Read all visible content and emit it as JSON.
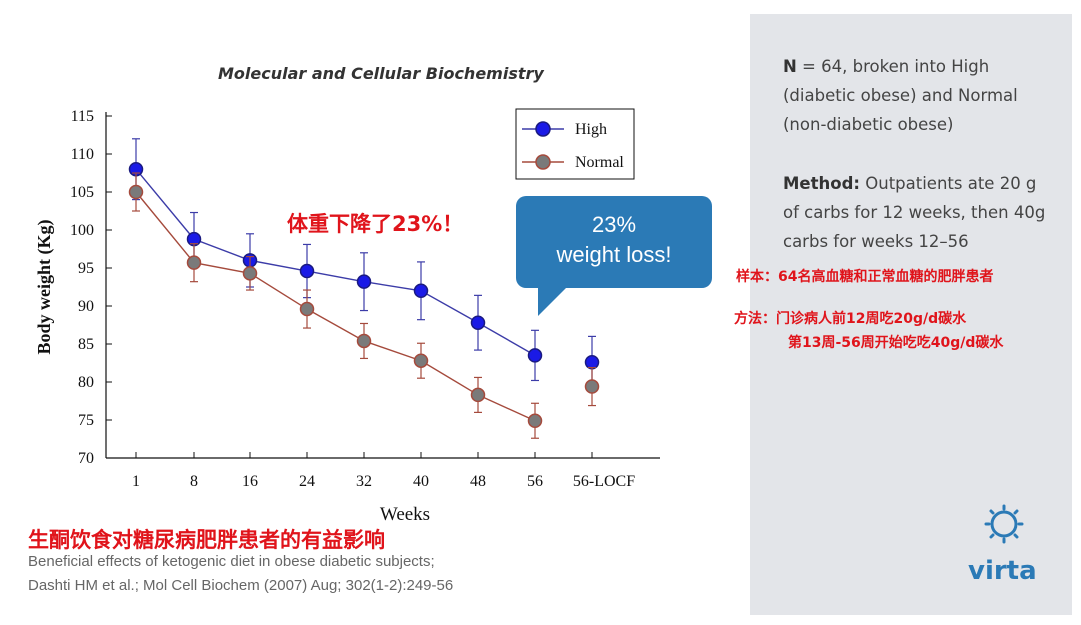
{
  "journal_title": "Molecular and Cellular Biochemistry",
  "cn_annotation": "体重下降了23%！",
  "callout": {
    "line1": "23%",
    "line2": "weight loss!"
  },
  "cn_title": "生酮饮食对糖尿病肥胖患者的有益影响",
  "citation": {
    "line1": "Beneficial effects of ketogenic diet in obese diabetic subjects;",
    "line2": "Dashti HM et al.; Mol Cell Biochem (2007) Aug; 302(1-2):249-56"
  },
  "panel": {
    "n_label": "N",
    "n_text": " = 64, broken into High (diabetic obese) and Normal (non-diabetic obese)",
    "method_label": "Method:",
    "method_text": " Outpatients ate 20 g of carbs for 12 weeks, then 40g carbs for weeks 12–56",
    "cn_sample": "样本：64名高血糖和正常血糖的肥胖患者",
    "cn_method_1": "方法：门诊病人前12周吃20g/d碳水",
    "cn_method_2": "第13周-56周开始吃吃40g/d碳水",
    "logo": "virta"
  },
  "colors": {
    "high": "#1a1ae6",
    "high_line": "#3c3ca8",
    "normal": "#7a7a7a",
    "normal_line": "#a54a3c",
    "callout": "#2b7ab6",
    "cn_red": "#e0141b"
  },
  "chart_data": {
    "type": "line",
    "categories": [
      "1",
      "8",
      "16",
      "24",
      "32",
      "40",
      "48",
      "56",
      "56-LOCF"
    ],
    "xlabel": "Weeks",
    "ylabel": "Body weight (Kg)",
    "ylim": [
      70,
      115
    ],
    "yticks": [
      70,
      75,
      80,
      85,
      90,
      95,
      100,
      105,
      110,
      115
    ],
    "legend_position": "top-right",
    "series": [
      {
        "name": "High",
        "values": [
          108,
          98.8,
          96,
          94.6,
          93.2,
          92,
          87.8,
          83.5,
          82.6
        ],
        "errors": [
          4,
          3.5,
          3.5,
          3.5,
          3.8,
          3.8,
          3.6,
          3.3,
          3.4
        ]
      },
      {
        "name": "Normal",
        "values": [
          105,
          95.7,
          94.3,
          89.6,
          85.4,
          82.8,
          78.3,
          74.9,
          79.4
        ],
        "errors": [
          2.5,
          2.5,
          2.2,
          2.5,
          2.3,
          2.3,
          2.3,
          2.3,
          2.5
        ]
      }
    ]
  }
}
